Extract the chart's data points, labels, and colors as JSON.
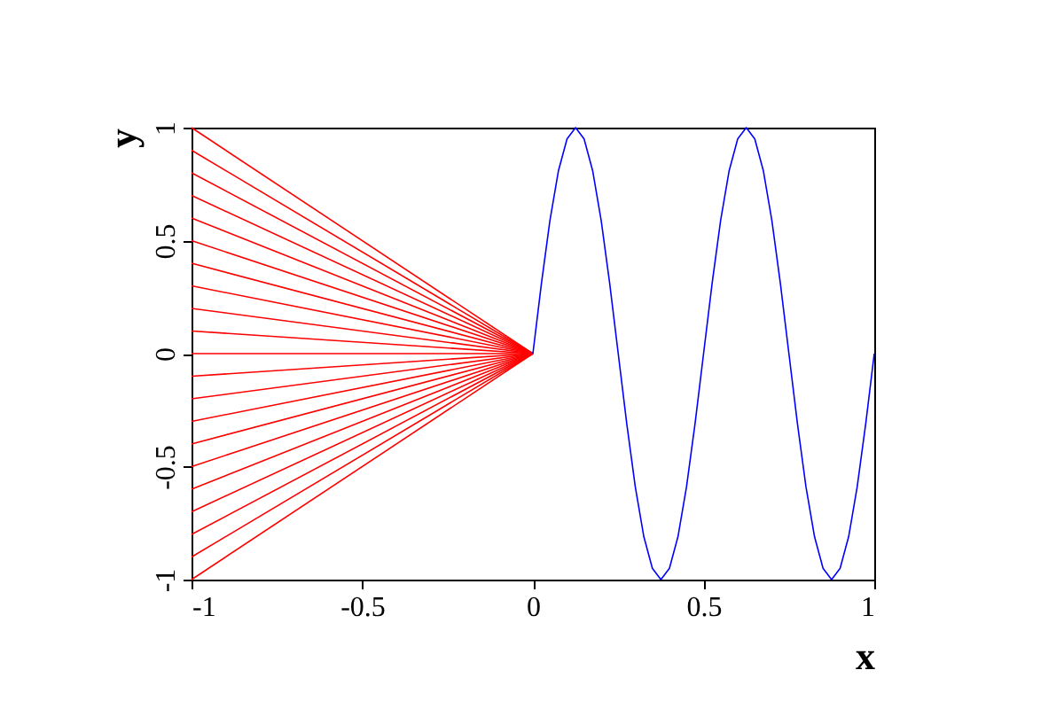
{
  "chart_data": {
    "type": "line",
    "xlabel": "x",
    "ylabel": "y",
    "xlim": [
      -1,
      1
    ],
    "ylim": [
      -1,
      1
    ],
    "xticks": [
      -1,
      -0.5,
      0,
      0.5,
      1
    ],
    "yticks": [
      -1,
      -0.5,
      0,
      0.5,
      1
    ],
    "grid": false,
    "legend": false,
    "line_style": "solid",
    "marker": "none",
    "series": [
      {
        "color": "#ff0000",
        "x": [
          -1,
          0
        ],
        "values": [
          1,
          0
        ]
      },
      {
        "color": "#ff0000",
        "x": [
          -1,
          0
        ],
        "values": [
          0.9,
          0
        ]
      },
      {
        "color": "#ff0000",
        "x": [
          -1,
          0
        ],
        "values": [
          0.8,
          0
        ]
      },
      {
        "color": "#ff0000",
        "x": [
          -1,
          0
        ],
        "values": [
          0.7,
          0
        ]
      },
      {
        "color": "#ff0000",
        "x": [
          -1,
          0
        ],
        "values": [
          0.6,
          0
        ]
      },
      {
        "color": "#ff0000",
        "x": [
          -1,
          0
        ],
        "values": [
          0.5,
          0
        ]
      },
      {
        "color": "#ff0000",
        "x": [
          -1,
          0
        ],
        "values": [
          0.4,
          0
        ]
      },
      {
        "color": "#ff0000",
        "x": [
          -1,
          0
        ],
        "values": [
          0.3,
          0
        ]
      },
      {
        "color": "#ff0000",
        "x": [
          -1,
          0
        ],
        "values": [
          0.2,
          0
        ]
      },
      {
        "color": "#ff0000",
        "x": [
          -1,
          0
        ],
        "values": [
          0.1,
          0
        ]
      },
      {
        "color": "#ff0000",
        "x": [
          -1,
          0
        ],
        "values": [
          0,
          0
        ]
      },
      {
        "color": "#ff0000",
        "x": [
          -1,
          0
        ],
        "values": [
          -0.1,
          0
        ]
      },
      {
        "color": "#ff0000",
        "x": [
          -1,
          0
        ],
        "values": [
          -0.2,
          0
        ]
      },
      {
        "color": "#ff0000",
        "x": [
          -1,
          0
        ],
        "values": [
          -0.3,
          0
        ]
      },
      {
        "color": "#ff0000",
        "x": [
          -1,
          0
        ],
        "values": [
          -0.4,
          0
        ]
      },
      {
        "color": "#ff0000",
        "x": [
          -1,
          0
        ],
        "values": [
          -0.5,
          0
        ]
      },
      {
        "color": "#ff0000",
        "x": [
          -1,
          0
        ],
        "values": [
          -0.6,
          0
        ]
      },
      {
        "color": "#ff0000",
        "x": [
          -1,
          0
        ],
        "values": [
          -0.7,
          0
        ]
      },
      {
        "color": "#ff0000",
        "x": [
          -1,
          0
        ],
        "values": [
          -0.8,
          0
        ]
      },
      {
        "color": "#ff0000",
        "x": [
          -1,
          0
        ],
        "values": [
          -0.9,
          0
        ]
      },
      {
        "color": "#ff0000",
        "x": [
          -1,
          0
        ],
        "values": [
          -1,
          0
        ]
      },
      {
        "color": "#0000ff",
        "x": [
          0,
          0.025,
          0.05,
          0.075,
          0.1,
          0.125,
          0.15,
          0.175,
          0.2,
          0.225,
          0.25,
          0.275,
          0.3,
          0.325,
          0.35,
          0.375,
          0.4,
          0.425,
          0.45,
          0.475,
          0.5,
          0.525,
          0.55,
          0.575,
          0.6,
          0.625,
          0.65,
          0.675,
          0.7,
          0.725,
          0.75,
          0.775,
          0.8,
          0.825,
          0.85,
          0.875,
          0.9,
          0.925,
          0.95,
          0.975,
          1
        ],
        "values": [
          0,
          0.31,
          0.59,
          0.81,
          0.95,
          1,
          0.95,
          0.81,
          0.59,
          0.31,
          0,
          -0.31,
          -0.59,
          -0.81,
          -0.95,
          -1,
          -0.95,
          -0.81,
          -0.59,
          -0.31,
          0,
          0.31,
          0.59,
          0.81,
          0.95,
          1,
          0.95,
          0.81,
          0.59,
          0.31,
          0,
          -0.31,
          -0.59,
          -0.81,
          -0.95,
          -1,
          -0.95,
          -0.81,
          -0.59,
          -0.31,
          0
        ]
      }
    ]
  }
}
